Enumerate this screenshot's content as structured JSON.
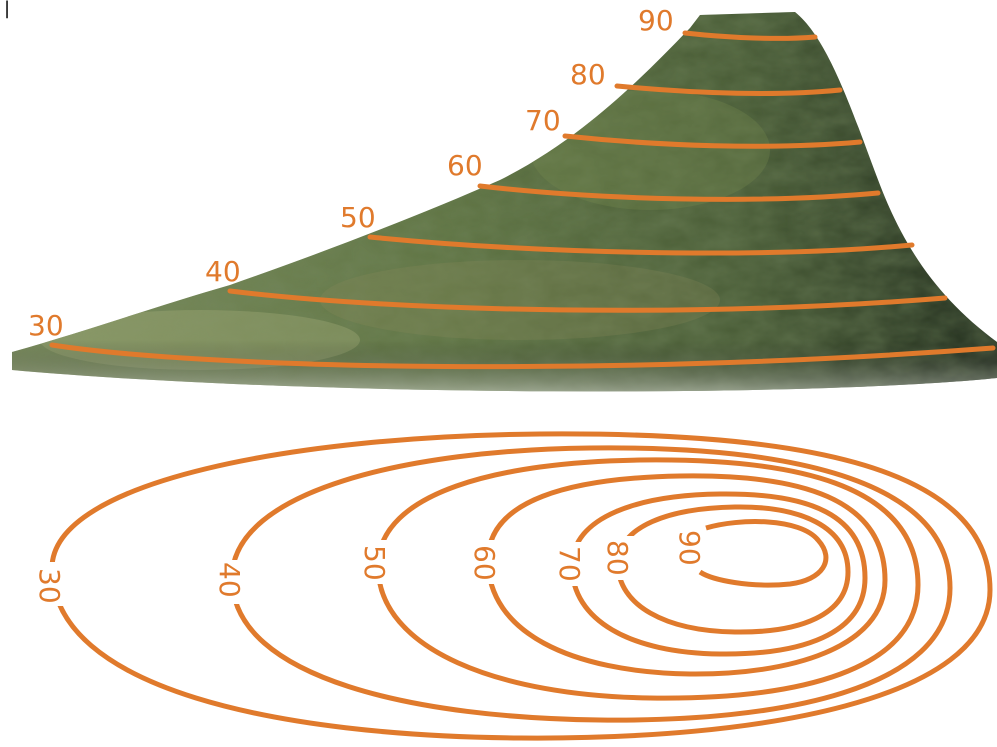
{
  "colors": {
    "contour": "#e07a2c",
    "hill_dark": "#2b3a24",
    "hill_mid": "#5a6e3e",
    "hill_light": "#8d9c6a",
    "background": "#ffffff"
  },
  "contour_labels": [
    "30",
    "40",
    "50",
    "60",
    "70",
    "80",
    "90"
  ],
  "corner_mark": "|"
}
